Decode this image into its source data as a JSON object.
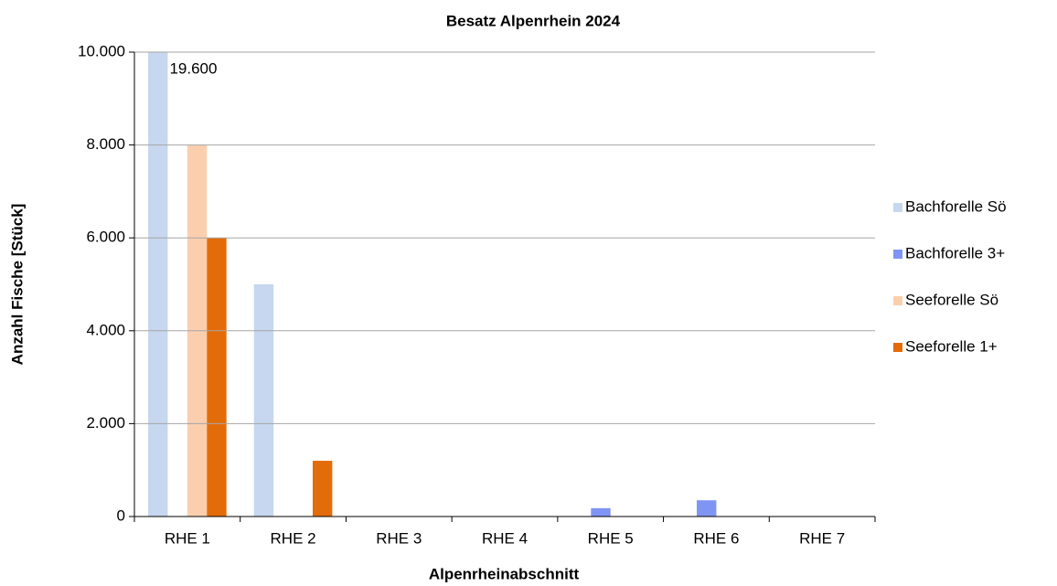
{
  "chart_data": {
    "type": "bar",
    "title": "Besatz Alpenrhein 2024",
    "x_label": "Alpenrheinabschnitt",
    "y_label": "Anzahl Fische [Stück]",
    "categories": [
      "RHE 1",
      "RHE 2",
      "RHE 3",
      "RHE 4",
      "RHE 5",
      "RHE 6",
      "RHE 7"
    ],
    "series": [
      {
        "name": "Bachforelle Sö",
        "color": "#c6d7ef",
        "values": [
          19600,
          5000,
          0,
          0,
          0,
          0,
          0
        ],
        "value_labels": [
          "19.600",
          null,
          null,
          null,
          null,
          null,
          null
        ]
      },
      {
        "name": "Bachforelle 3+",
        "color": "#7f95f4",
        "values": [
          0,
          0,
          0,
          0,
          180,
          350,
          0
        ]
      },
      {
        "name": "Seeforelle Sö",
        "color": "#fbcfae",
        "values": [
          8000,
          0,
          0,
          0,
          0,
          0,
          0
        ]
      },
      {
        "name": "Seeforelle 1+",
        "color": "#e36c0a",
        "values": [
          6000,
          1200,
          0,
          0,
          0,
          0,
          0
        ]
      }
    ],
    "ylim": [
      0,
      10000
    ],
    "yticks": [
      0,
      {
        "value": 2000,
        "label": "2.000"
      },
      {
        "value": 4000,
        "label": "4.000"
      },
      {
        "value": 6000,
        "label": "6.000"
      },
      {
        "value": 8000,
        "label": "8.000"
      },
      {
        "value": 10000,
        "label": "10.000"
      }
    ],
    "grid": true,
    "legend": "right"
  }
}
